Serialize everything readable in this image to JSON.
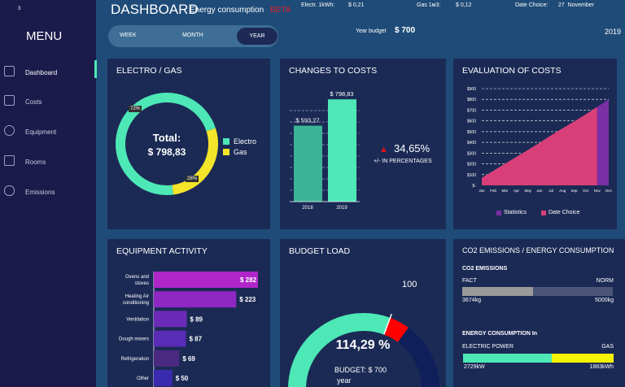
{
  "sidebar": {
    "corner": "3",
    "menu": "MENU",
    "items": [
      {
        "label": "Dashboard",
        "icon": "grid-icon"
      },
      {
        "label": "Costs",
        "icon": "receipt-icon"
      },
      {
        "label": "Equipment",
        "icon": "lightbulb-icon"
      },
      {
        "label": "Rooms",
        "icon": "room-icon"
      },
      {
        "label": "Emissions",
        "icon": "cloud-co2-icon"
      }
    ]
  },
  "header": {
    "title": "DASHBOARD",
    "subtitle": "Energy consumption",
    "beta": "BETA",
    "electr_label": "Electr. 1kWh:",
    "electr_value": "$ 0,21",
    "gas_label": "Gas 1м3:",
    "gas_value": "$ 0,12",
    "date_label": "Date Choice:",
    "date_value": "27  November",
    "budget_label": "Year budget",
    "budget_value": "$ 700",
    "year": "2019",
    "periods": [
      "WEEK",
      "MONTH",
      "YEAR"
    ],
    "active_period": "YEAR"
  },
  "colors": {
    "electro": "#4de8b6",
    "gas": "#f4e42a",
    "statistics": "#7a2fa5",
    "date_choice": "#d83f78",
    "gauge_over": "#ff0000"
  },
  "electro_gas": {
    "title": "ELECTRO / GAS",
    "total_label": "Total:",
    "total_value": "$ 798,83",
    "electro_pct": 72,
    "gas_pct": 28,
    "electro_label_text": "72%",
    "gas_label_text": "28%",
    "legend": [
      "Electro",
      "Gas"
    ]
  },
  "changes": {
    "title": "CHANGES TO COSTS",
    "bars": [
      {
        "year": "2018",
        "value": 593.27,
        "label": "$ 593,27"
      },
      {
        "year": "2019",
        "value": 798.83,
        "label": "$ 798,83"
      }
    ],
    "change": "34,65%",
    "change_caption": "+/- IN PERCENTAGES"
  },
  "chart_data": {
    "type": "area",
    "title": "EVALUATION OF COSTS",
    "categories": [
      "Jan",
      "Feb",
      "Mar",
      "Apr",
      "May",
      "Jun",
      "Jul",
      "Aug",
      "Sep",
      "Oct",
      "Nov",
      "Dec"
    ],
    "series": [
      {
        "name": "Date Choice",
        "values": [
          70,
          135,
          200,
          265,
          330,
          395,
          465,
          530,
          595,
          660,
          730,
          null
        ]
      },
      {
        "name": "Statistics",
        "values": [
          null,
          null,
          null,
          null,
          null,
          null,
          null,
          null,
          null,
          null,
          730,
          800
        ]
      }
    ],
    "yticks": [
      "$-",
      "$100",
      "$200",
      "$300",
      "$400",
      "$500",
      "$600",
      "$700",
      "$800",
      "$900"
    ],
    "ylim": [
      0,
      900
    ],
    "legend": [
      "Statistics",
      "Date Choice"
    ],
    "legend_position": "bottom",
    "grid": true
  },
  "equipment": {
    "title": "EQUIPMENT ACTIVITY",
    "items": [
      {
        "name": "Ovens and stoves",
        "value": 282,
        "label": "$ 282",
        "color": "#b026c8"
      },
      {
        "name": "Heating Air conditioning",
        "value": 223,
        "label": "$ 223",
        "color": "#8f27c2"
      },
      {
        "name": "Ventilation",
        "value": 89,
        "label": "$ 89",
        "color": "#6b2bb8"
      },
      {
        "name": "Dough mixers",
        "value": 87,
        "label": "$ 87",
        "color": "#5a2bb5"
      },
      {
        "name": "Refrigeration",
        "value": 69,
        "label": "$ 69",
        "color": "#4a2a80"
      },
      {
        "name": "Other",
        "value": 50,
        "label": "$ 50",
        "color": "#3a2ab0"
      }
    ]
  },
  "budget": {
    "title": "BUDGET LOAD",
    "value": 114.29,
    "value_text": "114,29 %",
    "marker": "100",
    "caption": "BUDGET: $ 700",
    "caption2": "year"
  },
  "co2": {
    "title": "CO2 EMISSIONS / ENERGY CONSUMPTION",
    "co2_title": "CO2 EMISSIONS",
    "fact": "FACT",
    "norm": "NORM",
    "fact_value": "3674kg",
    "norm_value": "5000kg",
    "fact_num": 3674,
    "norm_num": 5000,
    "energy_title": "ENERGY CONSUMPTION In",
    "electric": "ELECTRIC POWER",
    "gas": "GAS",
    "electric_value": "2729kW",
    "gas_value": "1883kWh",
    "electric_num": 2729,
    "gas_num": 1883
  }
}
